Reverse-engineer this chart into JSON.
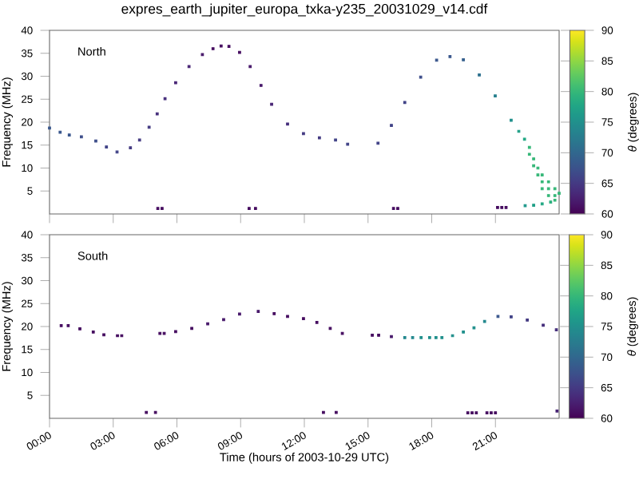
{
  "chart_data": [
    {
      "type": "scatter",
      "title": "expres_earth_jupiter_europa_txka-y235_20031029_v14.cdf",
      "ylabel": "Frequency (MHz)",
      "clabel": "*θ* (degrees)",
      "annotations": [
        "North"
      ],
      "marker": "square",
      "tick_labels": "y",
      "xlim": [
        0,
        24
      ],
      "ylim": [
        0,
        40
      ],
      "xticks": [
        {
          "value": 0,
          "label": null
        },
        {
          "value": 3,
          "label": null
        },
        {
          "value": 6,
          "label": null
        },
        {
          "value": 9,
          "label": null
        },
        {
          "value": 12,
          "label": null
        },
        {
          "value": 15,
          "label": null
        },
        {
          "value": 18,
          "label": null
        },
        {
          "value": 21,
          "label": null
        }
      ],
      "yticks": [
        5,
        10,
        15,
        20,
        25,
        30,
        35,
        40
      ],
      "clim": [
        60,
        90
      ],
      "cticks": [
        60,
        65,
        70,
        75,
        80,
        85,
        90
      ],
      "series": [
        {
          "x": [
            0,
            0.5,
            0.93,
            1.5,
            2.18,
            2.68,
            3.18,
            3.81,
            4.24,
            4.69,
            5.07,
            5.44,
            5.94,
            6.57,
            7.2,
            7.7,
            8.08,
            8.45,
            8.95,
            9.45,
            9.96,
            10.46,
            11.21,
            11.96,
            12.71,
            13.47,
            14.04,
            15.47,
            16.1,
            16.73,
            17.48,
            18.23,
            18.86,
            19.49,
            20.24,
            20.99,
            21.74,
            22.1,
            22.37,
            22.6,
            22.6,
            22.8,
            22.8,
            23.0,
            23.0,
            23.2,
            23.2,
            23.2,
            23.5,
            23.5,
            23.5,
            23.8,
            23.8,
            23.8,
            24,
            23.6,
            23.2,
            22.8,
            22.4,
            5.1,
            5.3,
            9.4,
            9.7,
            16.2,
            16.4,
            21.1,
            21.3,
            21.5
          ],
          "values": [
            18.7,
            17.8,
            17.2,
            16.8,
            15.9,
            14.6,
            13.5,
            14.4,
            16.1,
            18.9,
            21.8,
            25.1,
            28.6,
            32.1,
            34.7,
            36.0,
            36.6,
            36.5,
            35.2,
            32.1,
            28,
            23.9,
            19.6,
            17.5,
            16.6,
            16.1,
            15.2,
            15.4,
            19.3,
            24.3,
            29.8,
            33.5,
            34.3,
            33.6,
            30.3,
            25.7,
            20.4,
            18.0,
            16.3,
            14.5,
            13,
            12,
            10.5,
            10,
            8.5,
            8.5,
            7,
            5.5,
            7,
            5.5,
            4,
            5.5,
            4,
            3,
            4.5,
            2.6,
            2.2,
            1.9,
            1.8,
            1.2,
            1.2,
            1.2,
            1.2,
            1.2,
            1.2,
            1.4,
            1.4,
            1.4
          ],
          "cvalues": [
            68,
            68,
            68,
            67,
            67,
            66,
            66,
            65,
            65,
            65,
            64,
            64,
            63,
            63,
            62,
            61,
            61,
            61,
            61,
            62,
            62,
            63,
            64,
            65,
            65,
            66,
            66,
            66,
            66,
            66,
            67,
            68,
            68,
            69,
            71,
            73,
            75,
            77,
            78,
            80,
            80,
            80,
            80,
            80,
            80,
            80,
            80,
            80,
            80,
            80,
            80,
            80,
            80,
            80,
            80,
            79,
            78,
            77,
            76,
            61,
            61,
            61,
            61,
            61,
            61,
            61,
            61,
            61
          ]
        }
      ]
    },
    {
      "type": "scatter",
      "xlabel": "Time (hours of 2003-10-29 UTC)",
      "ylabel": "Frequency (MHz)",
      "clabel": "*θ* (degrees)",
      "annotations": [
        "South"
      ],
      "marker": "square",
      "xlim": [
        0,
        24
      ],
      "ylim": [
        0,
        40
      ],
      "xticks": [
        {
          "value": 0,
          "label": "00:00"
        },
        {
          "value": 3,
          "label": "03:00"
        },
        {
          "value": 6,
          "label": "06:00"
        },
        {
          "value": 9,
          "label": "09:00"
        },
        {
          "value": 12,
          "label": "12:00"
        },
        {
          "value": 15,
          "label": "15:00"
        },
        {
          "value": 18,
          "label": "18:00"
        },
        {
          "value": 21,
          "label": "21:00"
        }
      ],
      "yticks": [
        5,
        10,
        15,
        20,
        25,
        30,
        35,
        40
      ],
      "clim": [
        60,
        90
      ],
      "cticks": [
        60,
        65,
        70,
        75,
        80,
        85,
        90
      ],
      "series": [
        {
          "x": [
            0.55,
            0.88,
            1.43,
            2.06,
            2.56,
            3.2,
            3.4,
            5.2,
            5.4,
            5.94,
            6.7,
            7.45,
            8.2,
            8.95,
            9.83,
            10.58,
            11.21,
            11.96,
            12.59,
            13.22,
            13.79,
            15.2,
            15.5,
            16.1,
            16.73,
            17.1,
            17.5,
            17.9,
            18.2,
            18.48,
            18.98,
            19.49,
            19.99,
            20.49,
            21.12,
            21.74,
            22.5,
            23.25,
            23.87,
            4.56,
            4.99,
            12.9,
            13.5,
            19.7,
            19.9,
            20.1,
            20.6,
            20.8,
            21.0,
            23.9
          ],
          "values": [
            20.2,
            20.2,
            19.5,
            18.8,
            18.2,
            18.0,
            18.0,
            18.5,
            18.5,
            18.9,
            19.6,
            20.6,
            21.5,
            22.7,
            23.3,
            22.8,
            22.2,
            21.7,
            20.9,
            19.6,
            18.5,
            18.1,
            18.1,
            17.8,
            17.6,
            17.6,
            17.6,
            17.6,
            17.6,
            17.6,
            18.0,
            18.8,
            19.7,
            21.1,
            22.2,
            22.1,
            21.4,
            20.3,
            19.3,
            1.3,
            1.3,
            1.3,
            1.3,
            1.2,
            1.2,
            1.2,
            1.2,
            1.2,
            1.2,
            1.6
          ],
          "cvalues": [
            61,
            61,
            61,
            61,
            61,
            61,
            61,
            61,
            61,
            61,
            61,
            62,
            62,
            62,
            62,
            61,
            61,
            61,
            61,
            61,
            61,
            61,
            61,
            62,
            74,
            74,
            75,
            75,
            75,
            75,
            75,
            75,
            75,
            74,
            68,
            66,
            65,
            64,
            64,
            61,
            61,
            61,
            61,
            61,
            61,
            61,
            61,
            61,
            61,
            63
          ]
        }
      ]
    }
  ]
}
